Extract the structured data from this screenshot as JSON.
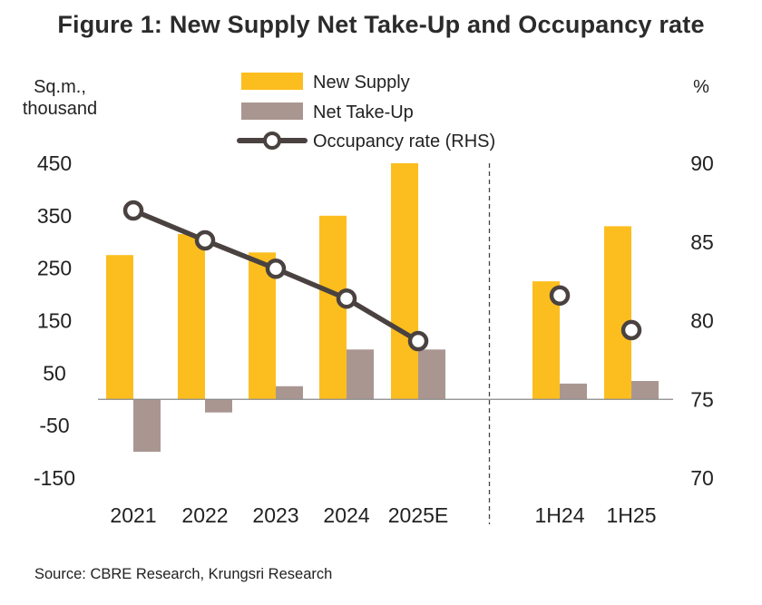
{
  "chart_data": {
    "type": "bar",
    "title": "Figure 1: New Supply Net Take-Up and Occupancy rate",
    "ylabel_left": [
      "Sq.m.,",
      "thousand"
    ],
    "ylabel_right": "%",
    "categories": [
      "2021",
      "2022",
      "2023",
      "2024",
      "2025E",
      "1H24",
      "1H25"
    ],
    "series": [
      {
        "name": "New Supply",
        "kind": "bar",
        "axis": "left",
        "color": "#FCBE1F",
        "values": [
          275,
          315,
          280,
          350,
          450,
          225,
          330
        ]
      },
      {
        "name": "Net Take-Up",
        "kind": "bar",
        "axis": "left",
        "color": "#AA9691",
        "values": [
          -100,
          -25,
          25,
          95,
          95,
          30,
          35
        ]
      },
      {
        "name": "Occupancy rate (RHS)",
        "kind": "line",
        "axis": "right",
        "color": "#4A4240",
        "values": [
          87.0,
          85.1,
          83.3,
          81.4,
          78.7,
          81.6,
          79.4
        ]
      }
    ],
    "ylim_left": [
      -150,
      450
    ],
    "yticks_left": [
      "450",
      "350",
      "250",
      "150",
      "50",
      "-50",
      "-150"
    ],
    "ylim_right": [
      70,
      90
    ],
    "yticks_right": [
      "90",
      "85",
      "80",
      "75",
      "70"
    ],
    "line_connected_categories": [
      "2021",
      "2022",
      "2023",
      "2024",
      "2025E"
    ],
    "divider_after": "2025E",
    "legend_position": "top-center"
  },
  "source": "Source: CBRE Research, Krungsri Research"
}
